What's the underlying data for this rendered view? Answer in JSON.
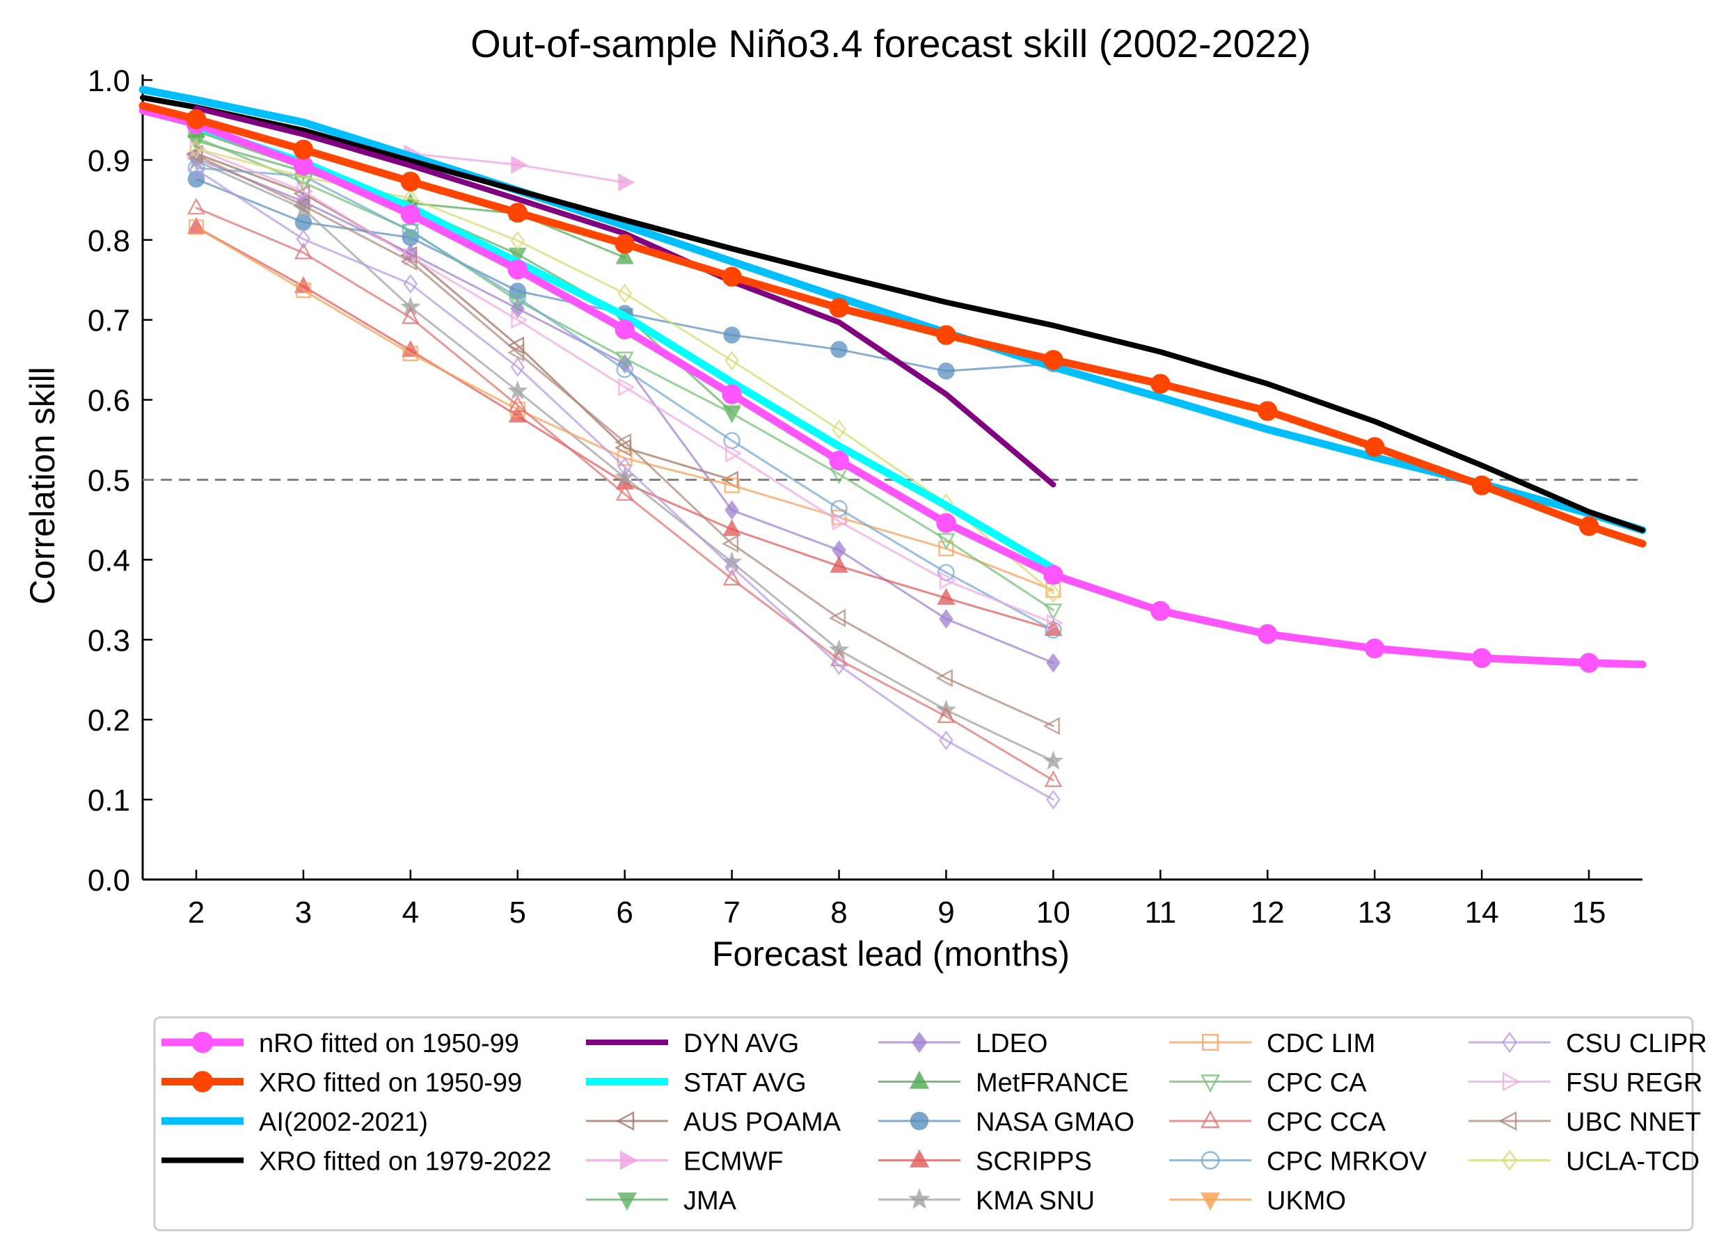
{
  "chart_data": {
    "type": "line",
    "title": "Out-of-sample Niño3.4 forecast skill (2002-2022)",
    "xlabel": "Forecast lead (months)",
    "ylabel": "Correlation skill",
    "xlim": [
      1.5,
      15.5
    ],
    "ylim": [
      0.0,
      1.0
    ],
    "xticks": [
      "2",
      "3",
      "4",
      "5",
      "6",
      "7",
      "8",
      "9",
      "10",
      "11",
      "12",
      "13",
      "14",
      "15"
    ],
    "yticks": [
      "0.0",
      "0.1",
      "0.2",
      "0.3",
      "0.4",
      "0.5",
      "0.6",
      "0.7",
      "0.8",
      "0.9",
      "1.0"
    ],
    "reference_line": {
      "y": 0.5,
      "style": "dashed",
      "color": "#808080"
    },
    "grid": false,
    "legend_position": "bottom",
    "series": [
      {
        "name": "nRO fitted on 1950-99",
        "color": "#ff55ff",
        "style": "thick-line",
        "marker": "filled-circle",
        "x": [
          1.5,
          2,
          3,
          4,
          5,
          6,
          7,
          8,
          9,
          10,
          11,
          12,
          13,
          14,
          15,
          15.5
        ],
        "y": [
          0.962,
          0.945,
          0.893,
          0.832,
          0.763,
          0.688,
          0.607,
          0.524,
          0.446,
          0.381,
          0.336,
          0.307,
          0.289,
          0.277,
          0.271,
          0.269
        ]
      },
      {
        "name": "XRO fitted on 1950-99",
        "color": "#ff4500",
        "style": "thick-line",
        "marker": "filled-circle",
        "x": [
          1.5,
          2,
          3,
          4,
          5,
          6,
          7,
          8,
          9,
          10,
          11,
          12,
          13,
          14,
          15,
          15.5
        ],
        "y": [
          0.968,
          0.951,
          0.913,
          0.873,
          0.834,
          0.795,
          0.754,
          0.715,
          0.681,
          0.65,
          0.62,
          0.586,
          0.541,
          0.493,
          0.442,
          0.42
        ]
      },
      {
        "name": "AI(2002-2021)",
        "color": "#00bfff",
        "style": "thick-line",
        "marker": "none",
        "x": [
          1.5,
          2,
          3,
          4,
          5,
          6,
          7,
          8,
          9,
          10,
          11,
          12,
          13,
          14,
          15,
          15.5
        ],
        "y": [
          0.988,
          0.975,
          0.947,
          0.905,
          0.862,
          0.818,
          0.773,
          0.728,
          0.684,
          0.641,
          0.603,
          0.563,
          0.528,
          0.495,
          0.458,
          0.437
        ]
      },
      {
        "name": "XRO fitted on 1979-2022",
        "color": "#000000",
        "style": "line",
        "marker": "none",
        "x": [
          1.5,
          2,
          3,
          4,
          5,
          6,
          7,
          8,
          9,
          10,
          11,
          12,
          13,
          14,
          15,
          15.5
        ],
        "y": [
          0.978,
          0.966,
          0.937,
          0.899,
          0.862,
          0.825,
          0.789,
          0.755,
          0.722,
          0.693,
          0.66,
          0.62,
          0.573,
          0.518,
          0.46,
          0.437
        ]
      },
      {
        "name": "DYN AVG",
        "color": "#800080",
        "style": "line",
        "marker": "none",
        "x": [
          2,
          3,
          4,
          5,
          6,
          7,
          8,
          9,
          10
        ],
        "y": [
          0.965,
          0.932,
          0.893,
          0.851,
          0.808,
          0.748,
          0.697,
          0.607,
          0.494
        ]
      },
      {
        "name": "STAT AVG",
        "color": "#00ffff",
        "style": "thick-line",
        "marker": "none",
        "x": [
          2,
          3,
          4,
          5,
          6,
          7,
          8,
          9,
          10
        ],
        "y": [
          0.942,
          0.897,
          0.841,
          0.772,
          0.705,
          0.622,
          0.542,
          0.468,
          0.389
        ]
      },
      {
        "name": "AUS POAMA",
        "color": "#a07060",
        "style": "line",
        "marker": "left-triangle",
        "x": [
          2,
          3,
          4,
          5,
          6,
          7
        ],
        "y": [
          0.908,
          0.858,
          0.781,
          0.668,
          0.54,
          0.5
        ]
      },
      {
        "name": "ECMWF",
        "color": "#f0a0e0",
        "style": "line",
        "marker": "right-triangle-filled",
        "x": [
          4,
          5,
          6
        ],
        "y": [
          0.908,
          0.894,
          0.872
        ]
      },
      {
        "name": "JMA",
        "color": "#60b060",
        "style": "line",
        "marker": "down-triangle-filled",
        "x": [
          2,
          3,
          4,
          5,
          6,
          7
        ],
        "y": [
          0.924,
          0.886,
          0.842,
          0.782,
          0.706,
          0.585
        ]
      },
      {
        "name": "LDEO",
        "color": "#a080d0",
        "style": "line",
        "marker": "diamond-filled",
        "x": [
          2,
          3,
          4,
          5,
          6,
          7,
          8,
          9,
          10
        ],
        "y": [
          0.902,
          0.848,
          0.783,
          0.714,
          0.645,
          0.462,
          0.412,
          0.326,
          0.271
        ]
      },
      {
        "name": "MetFRANCE",
        "color": "#50a850",
        "style": "line",
        "marker": "up-triangle-filled",
        "x": [
          2,
          3,
          4,
          5,
          6
        ],
        "y": [
          0.936,
          0.89,
          0.846,
          0.833,
          0.778
        ]
      },
      {
        "name": "NASA GMAO",
        "color": "#5a90c0",
        "style": "line",
        "marker": "filled-circle",
        "x": [
          2,
          3,
          4,
          5,
          6,
          7,
          8,
          9,
          10
        ],
        "y": [
          0.876,
          0.822,
          0.803,
          0.736,
          0.708,
          0.681,
          0.663,
          0.636,
          0.645
        ]
      },
      {
        "name": "SCRIPPS",
        "color": "#e05858",
        "style": "line",
        "marker": "up-triangle-filled",
        "x": [
          2,
          3,
          4,
          5,
          6,
          7,
          8,
          9,
          10
        ],
        "y": [
          0.816,
          0.742,
          0.662,
          0.58,
          0.496,
          0.438,
          0.392,
          0.352,
          0.313
        ]
      },
      {
        "name": "KMA SNU",
        "color": "#a0a0a0",
        "style": "line",
        "marker": "star",
        "x": [
          2,
          3,
          4,
          5,
          6,
          7,
          8,
          9,
          10
        ],
        "y": [
          0.899,
          0.839,
          0.716,
          0.611,
          0.503,
          0.397,
          0.287,
          0.212,
          0.148
        ]
      },
      {
        "name": "CDC LIM",
        "color": "#f8a058",
        "style": "line",
        "marker": "open-square",
        "x": [
          2,
          3,
          4,
          5,
          6,
          7,
          8,
          9,
          10
        ],
        "y": [
          0.816,
          0.737,
          0.658,
          0.588,
          0.527,
          0.493,
          0.453,
          0.414,
          0.362
        ]
      },
      {
        "name": "CPC CA",
        "color": "#70c070",
        "style": "line",
        "marker": "open-down-triangle",
        "x": [
          2,
          3,
          4,
          5,
          6,
          7,
          8,
          9,
          10
        ],
        "y": [
          0.928,
          0.872,
          0.812,
          0.724,
          0.652,
          0.583,
          0.507,
          0.425,
          0.337
        ]
      },
      {
        "name": "CPC CCA",
        "color": "#e07070",
        "style": "line",
        "marker": "open-up-triangle",
        "x": [
          2,
          3,
          4,
          5,
          6,
          7,
          8,
          9,
          10
        ],
        "y": [
          0.84,
          0.784,
          0.703,
          0.593,
          0.482,
          0.376,
          0.275,
          0.204,
          0.124
        ]
      },
      {
        "name": "CPC MRKOV",
        "color": "#70a8d0",
        "style": "line",
        "marker": "open-circle",
        "x": [
          2,
          3,
          4,
          5,
          6,
          7,
          8,
          9,
          10
        ],
        "y": [
          0.89,
          0.88,
          0.811,
          0.728,
          0.638,
          0.549,
          0.464,
          0.384,
          0.312
        ]
      },
      {
        "name": "UKMO",
        "color": "#f8a050",
        "style": "line",
        "marker": "down-triangle-filled",
        "x": [],
        "y": []
      },
      {
        "name": "CSU CLIPR",
        "color": "#b898e0",
        "style": "line",
        "marker": "open-diamond",
        "x": [
          2,
          3,
          4,
          5,
          6,
          7,
          8,
          9,
          10
        ],
        "y": [
          0.888,
          0.801,
          0.745,
          0.641,
          0.516,
          0.391,
          0.268,
          0.174,
          0.1
        ]
      },
      {
        "name": "FSU REGR",
        "color": "#f0a8e0",
        "style": "line",
        "marker": "open-right-triangle",
        "x": [
          2,
          3,
          4,
          5,
          6,
          7,
          8,
          9,
          10
        ],
        "y": [
          0.914,
          0.861,
          0.779,
          0.7,
          0.616,
          0.533,
          0.448,
          0.374,
          0.321
        ]
      },
      {
        "name": "UBC NNET",
        "color": "#b08878",
        "style": "line",
        "marker": "open-left-triangle",
        "x": [
          2,
          3,
          4,
          5,
          6,
          7,
          8,
          9,
          10
        ],
        "y": [
          0.906,
          0.843,
          0.773,
          0.659,
          0.547,
          0.42,
          0.327,
          0.252,
          0.192
        ]
      },
      {
        "name": "UCLA-TCD",
        "color": "#d8d870",
        "style": "line",
        "marker": "open-diamond",
        "x": [
          2,
          3,
          4,
          5,
          6,
          7,
          8,
          9,
          10
        ],
        "y": [
          0.914,
          0.879,
          0.852,
          0.799,
          0.733,
          0.649,
          0.563,
          0.471,
          0.358
        ]
      }
    ]
  }
}
